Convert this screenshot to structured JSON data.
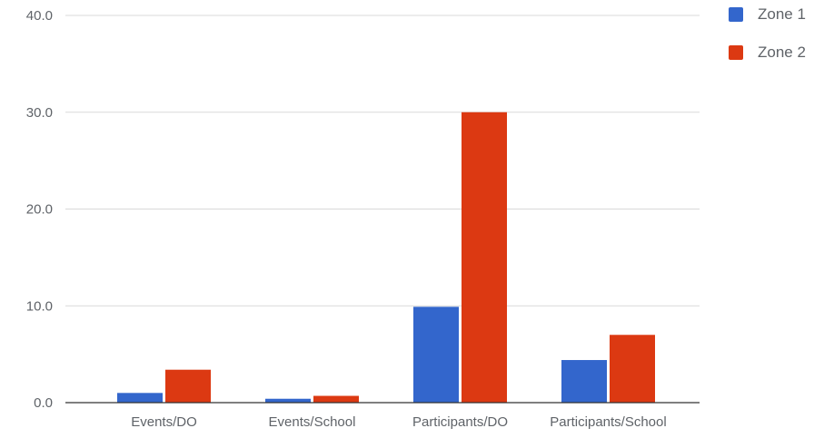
{
  "chart_data": {
    "type": "bar",
    "categories": [
      "Events/DO",
      "Events/School",
      "Participants/DO",
      "Participants/School"
    ],
    "series": [
      {
        "name": "Zone 1",
        "color": "#3366cc",
        "values": [
          1.0,
          0.4,
          9.9,
          4.4
        ]
      },
      {
        "name": "Zone 2",
        "color": "#dc3912",
        "values": [
          3.4,
          0.7,
          30.0,
          7.0
        ]
      }
    ],
    "yticks": [
      "0.0",
      "10.0",
      "20.0",
      "30.0",
      "40.0"
    ],
    "ylim": [
      0,
      40
    ],
    "grid": true,
    "legend_position": "top-right"
  }
}
